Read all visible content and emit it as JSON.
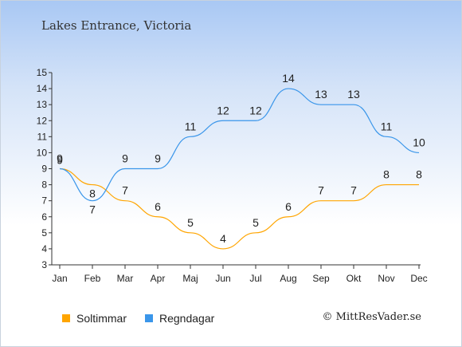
{
  "title": "Lakes Entrance, Victoria",
  "copyright": "© MittResVader.se",
  "chart_data": {
    "type": "line",
    "title": "Lakes Entrance, Victoria",
    "xlabel": "",
    "ylabel": "",
    "ylim": [
      3,
      15
    ],
    "yticks": [
      "3",
      "4",
      "5",
      "6",
      "7",
      "8",
      "9",
      "10",
      "11",
      "12",
      "13",
      "14",
      "15"
    ],
    "categories": [
      "Jan",
      "Feb",
      "Mar",
      "Apr",
      "Maj",
      "Jun",
      "Jul",
      "Aug",
      "Sep",
      "Okt",
      "Nov",
      "Dec"
    ],
    "grid": false,
    "legend_position": "bottom-left",
    "series": [
      {
        "name": "Soltimmar",
        "color": "#ffa500",
        "values": [
          9,
          8,
          7,
          6,
          5,
          4,
          5,
          6,
          7,
          7,
          8,
          8
        ]
      },
      {
        "name": "Regndagar",
        "color": "#3a96ea",
        "values": [
          9,
          7,
          9,
          9,
          11,
          12,
          12,
          14,
          13,
          13,
          11,
          10
        ]
      }
    ]
  }
}
